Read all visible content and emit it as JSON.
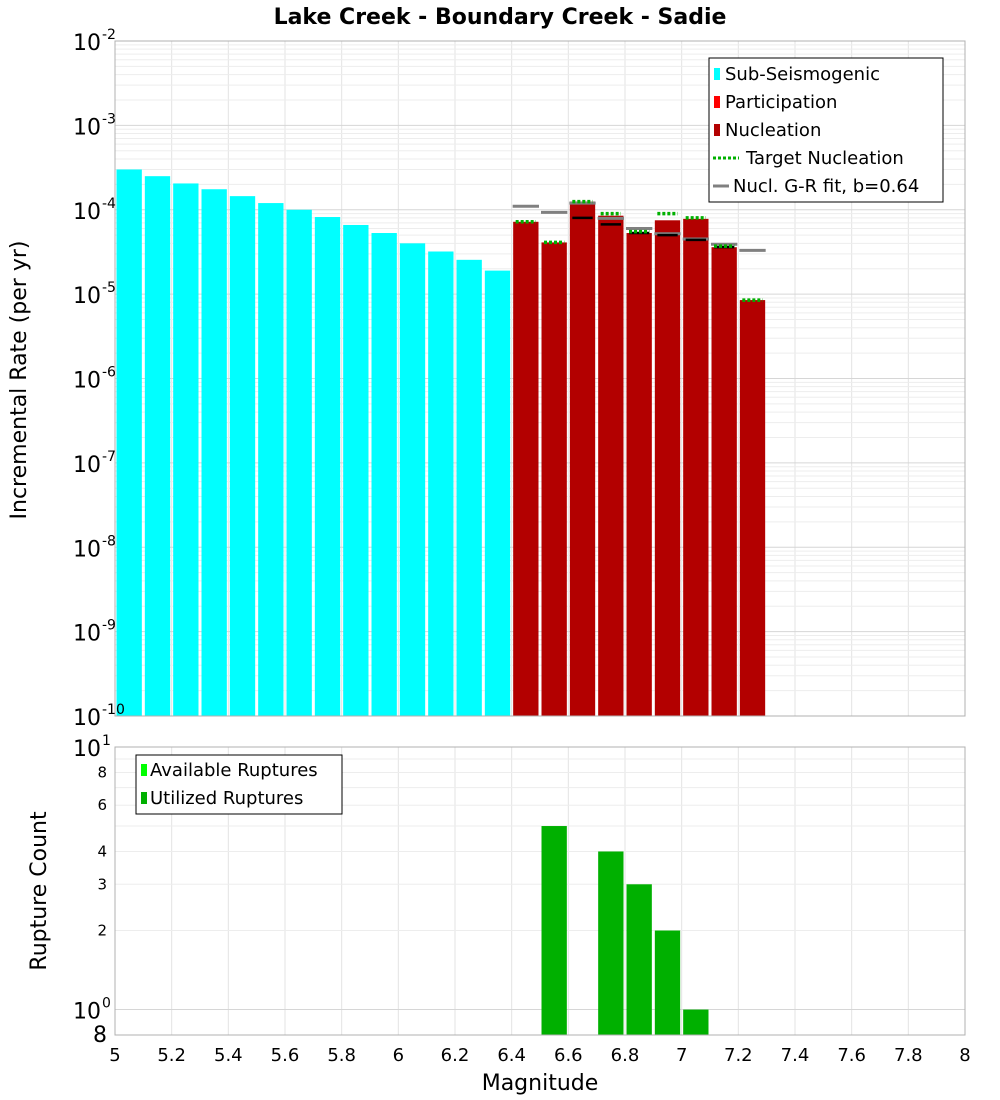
{
  "chart_data": [
    {
      "type": "bar",
      "title": "Lake Creek - Boundary Creek - Sadie",
      "xlabel": "",
      "ylabel": "Incremental Rate (per yr)",
      "xlim": [
        5,
        8
      ],
      "ylim_exponent": [
        -10,
        -2
      ],
      "yscale": "log",
      "grid": true,
      "bin_width": 0.1,
      "legend_position": "top-right",
      "legend": [
        {
          "label": "Sub-Seismogenic",
          "color": "#00ffff",
          "kind": "box"
        },
        {
          "label": "Participation",
          "color": "#ff0000",
          "kind": "box"
        },
        {
          "label": "Nucleation",
          "color": "#b30000",
          "kind": "box"
        },
        {
          "label": "Target Nucleation",
          "color": "#00b000",
          "kind": "dotted"
        },
        {
          "label": "Nucl. G-R fit, b=0.64",
          "color": "#808080",
          "kind": "line"
        }
      ],
      "series": [
        {
          "name": "Sub-Seismogenic",
          "color": "#00ffff",
          "x": [
            5.05,
            5.15,
            5.25,
            5.35,
            5.45,
            5.55,
            5.65,
            5.75,
            5.85,
            5.95,
            6.05,
            6.15,
            6.25,
            6.35
          ],
          "values": [
            0.0003,
            0.00025,
            0.000205,
            0.000175,
            0.000145,
            0.00012,
            0.0001,
            8.2e-05,
            6.6e-05,
            5.3e-05,
            4e-05,
            3.2e-05,
            2.55e-05,
            1.9e-05
          ]
        },
        {
          "name": "Nucleation",
          "color": "#b30000",
          "x": [
            6.45,
            6.55,
            6.65,
            6.75,
            6.85,
            6.95,
            7.05,
            7.15,
            7.25
          ],
          "values": [
            7.2e-05,
            4.1e-05,
            0.000125,
            8.5e-05,
            5.3e-05,
            7.5e-05,
            7.8e-05,
            3.6e-05,
            8.5e-06
          ]
        },
        {
          "name": "Target Nucleation",
          "color": "#00b000",
          "x": [
            6.45,
            6.55,
            6.65,
            6.75,
            6.85,
            6.95,
            7.05,
            7.15,
            7.25
          ],
          "values": [
            7.2e-05,
            4.1e-05,
            0.000125,
            9e-05,
            5.5e-05,
            9e-05,
            8e-05,
            3.7e-05,
            8.5e-06
          ]
        },
        {
          "name": "Nucl. G-R fit, b=0.64",
          "color": "#808080",
          "x": [
            6.45,
            6.55,
            6.65,
            6.75,
            6.85,
            6.95,
            7.05,
            7.15,
            7.25
          ],
          "values": [
            0.00011,
            9.3e-05,
            0.00012,
            7.9e-05,
            6e-05,
            5.2e-05,
            4.5e-05,
            3.9e-05,
            3.3e-05
          ]
        },
        {
          "name": "Participation",
          "color": "#000000",
          "x": [
            6.65,
            6.75,
            6.85,
            6.95,
            7.05,
            7.15
          ],
          "values": [
            8e-05,
            6.7e-05,
            5.3e-05,
            5e-05,
            4.4e-05,
            3.6e-05
          ]
        }
      ]
    },
    {
      "type": "bar",
      "title": "",
      "xlabel": "Magnitude",
      "ylabel": "Rupture Count",
      "xlim": [
        5,
        8
      ],
      "xticks": [
        "5",
        "5.2",
        "5.4",
        "5.6",
        "5.8",
        "6",
        "6.2",
        "6.4",
        "6.6",
        "6.8",
        "7",
        "7.2",
        "7.4",
        "7.6",
        "7.8",
        "8"
      ],
      "yscale": "log",
      "ylim": [
        0.8,
        10
      ],
      "grid": true,
      "legend_position": "top-left",
      "legend": [
        {
          "label": "Available Ruptures",
          "color": "#00ff00",
          "kind": "box"
        },
        {
          "label": "Utilized Ruptures",
          "color": "#00b000",
          "kind": "box"
        }
      ],
      "y_minor_ticks": [
        "2",
        "3",
        "4",
        "6",
        "8"
      ],
      "y_bottom_label": "8",
      "series": [
        {
          "name": "Utilized Ruptures",
          "color": "#00b000",
          "x": [
            6.55,
            6.75,
            6.85,
            6.95,
            7.05
          ],
          "values": [
            5,
            4,
            3,
            2,
            1
          ]
        }
      ]
    }
  ]
}
